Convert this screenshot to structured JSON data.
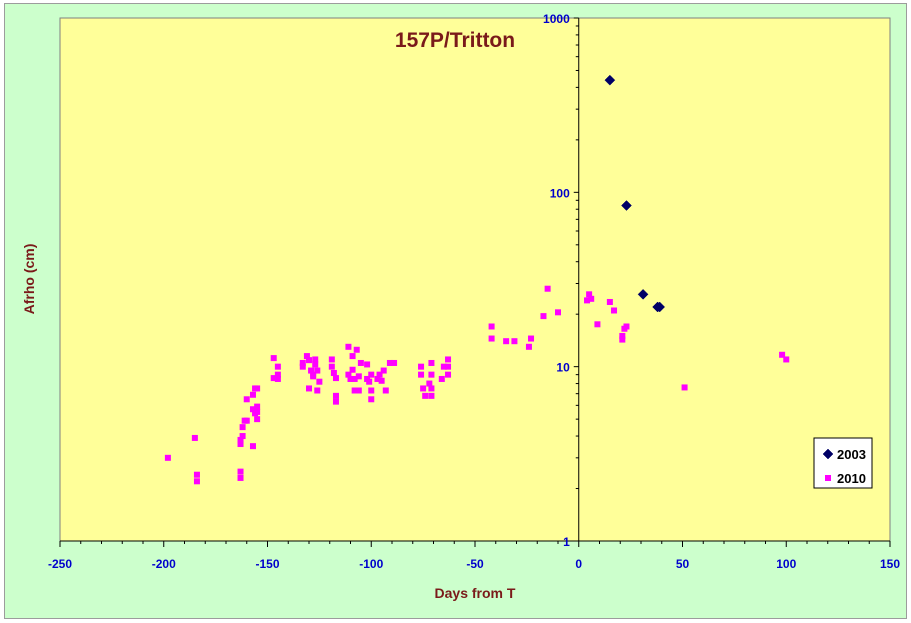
{
  "chart_data": {
    "type": "scatter",
    "title": "157P/Tritton",
    "xlabel": "Days from T",
    "ylabel": "Afrho (cm)",
    "xlim": [
      -250,
      150
    ],
    "ylim": [
      1,
      1000
    ],
    "yscale": "log",
    "x_ticks": [
      -250,
      -200,
      -150,
      -100,
      -50,
      0,
      50,
      100,
      150
    ],
    "x_tick_labels": [
      "-250",
      "-200",
      "-150",
      "-100",
      "-50",
      "0",
      "50",
      "100",
      "150"
    ],
    "y_ticks": [
      1,
      10,
      100,
      1000
    ],
    "y_tick_labels": [
      "1",
      "10",
      "100",
      "1000"
    ],
    "grid": false,
    "legend_position": "bottom-right",
    "colors": {
      "plot_background": "#ffff99",
      "figure_background": "#ccffcc",
      "text": "#7a1a1a",
      "ticks": "#0000cc"
    },
    "series": [
      {
        "name": "2003",
        "marker": "diamond",
        "color": "#000066",
        "points": [
          [
            15,
            440
          ],
          [
            23,
            84
          ],
          [
            31,
            26
          ],
          [
            38,
            22
          ],
          [
            39,
            22
          ]
        ]
      },
      {
        "name": "2010",
        "marker": "square",
        "color": "#ff00ff",
        "points": [
          [
            -198,
            3.0
          ],
          [
            -185,
            3.9
          ],
          [
            -184,
            2.4
          ],
          [
            -184,
            2.2
          ],
          [
            -163,
            3.6
          ],
          [
            -163,
            3.8
          ],
          [
            -163,
            2.5
          ],
          [
            -163,
            2.3
          ],
          [
            -162,
            4.0
          ],
          [
            -162,
            4.5
          ],
          [
            -161,
            4.9
          ],
          [
            -160,
            6.5
          ],
          [
            -160,
            4.9
          ],
          [
            -157,
            3.5
          ],
          [
            -157,
            5.7
          ],
          [
            -157,
            6.9
          ],
          [
            -156,
            7.5
          ],
          [
            -156,
            5.4
          ],
          [
            -155,
            7.5
          ],
          [
            -155,
            5.9
          ],
          [
            -155,
            5.5
          ],
          [
            -155,
            5.0
          ],
          [
            -147,
            11.2
          ],
          [
            -147,
            8.6
          ],
          [
            -145,
            10.0
          ],
          [
            -145,
            9.0
          ],
          [
            -145,
            8.5
          ],
          [
            -133,
            10.5
          ],
          [
            -133,
            10.0
          ],
          [
            -131,
            11.5
          ],
          [
            -130,
            10.9
          ],
          [
            -130,
            7.5
          ],
          [
            -129,
            9.5
          ],
          [
            -128,
            9.0
          ],
          [
            -128,
            8.8
          ],
          [
            -127,
            11.0
          ],
          [
            -127,
            10.3
          ],
          [
            -126,
            9.5
          ],
          [
            -126,
            7.3
          ],
          [
            -125,
            8.2
          ],
          [
            -119,
            11.0
          ],
          [
            -119,
            10.0
          ],
          [
            -118,
            9.2
          ],
          [
            -117,
            8.6
          ],
          [
            -117,
            6.8
          ],
          [
            -117,
            6.3
          ],
          [
            -111,
            13.0
          ],
          [
            -111,
            9.0
          ],
          [
            -110,
            8.5
          ],
          [
            -109,
            9.6
          ],
          [
            -109,
            11.5
          ],
          [
            -108,
            8.5
          ],
          [
            -108,
            7.3
          ],
          [
            -107,
            12.5
          ],
          [
            -106,
            8.8
          ],
          [
            -106,
            7.3
          ],
          [
            -105,
            10.5
          ],
          [
            -102,
            10.3
          ],
          [
            -102,
            8.5
          ],
          [
            -101,
            8.2
          ],
          [
            -100,
            9.0
          ],
          [
            -100,
            7.3
          ],
          [
            -100,
            6.5
          ],
          [
            -97,
            8.5
          ],
          [
            -96,
            9.0
          ],
          [
            -95,
            8.3
          ],
          [
            -94,
            9.5
          ],
          [
            -93,
            7.3
          ],
          [
            -91,
            10.5
          ],
          [
            -89,
            10.5
          ],
          [
            -76,
            10.0
          ],
          [
            -76,
            9.0
          ],
          [
            -75,
            7.5
          ],
          [
            -74,
            6.8
          ],
          [
            -72,
            8.0
          ],
          [
            -71,
            10.5
          ],
          [
            -71,
            9.0
          ],
          [
            -71,
            7.5
          ],
          [
            -71,
            6.8
          ],
          [
            -66,
            8.5
          ],
          [
            -65,
            10.0
          ],
          [
            -63,
            11.0
          ],
          [
            -63,
            10.0
          ],
          [
            -63,
            9.0
          ],
          [
            -42,
            17.0
          ],
          [
            -42,
            14.5
          ],
          [
            -35,
            14.0
          ],
          [
            -31,
            14.0
          ],
          [
            -24,
            13.0
          ],
          [
            -23,
            14.5
          ],
          [
            -17,
            19.5
          ],
          [
            -15,
            28.0
          ],
          [
            -10,
            20.5
          ],
          [
            4,
            24.0
          ],
          [
            5,
            26.0
          ],
          [
            6,
            24.5
          ],
          [
            9,
            17.5
          ],
          [
            15,
            23.5
          ],
          [
            17,
            21.0
          ],
          [
            21,
            15.0
          ],
          [
            21,
            14.3
          ],
          [
            22,
            16.5
          ],
          [
            23,
            17.0
          ],
          [
            51,
            7.6
          ],
          [
            98,
            11.7
          ],
          [
            100,
            11.0
          ]
        ]
      }
    ]
  }
}
